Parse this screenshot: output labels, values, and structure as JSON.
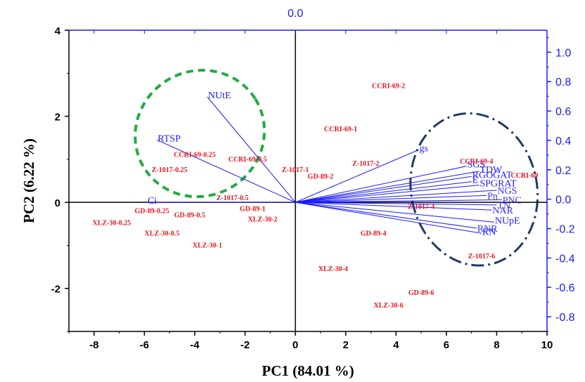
{
  "chart_data": {
    "type": "scatter",
    "subtype": "pca-biplot",
    "xlabel": "PC1 (84.01 %)",
    "ylabel": "PC2 (6.22 %)",
    "top_axis_label": "0.0",
    "xlim": [
      -9,
      10
    ],
    "ylim": [
      -3,
      4
    ],
    "loading_ylim": [
      -0.9,
      1.15
    ],
    "xticks": [
      "-8",
      "-6",
      "-4",
      "-2",
      "0",
      "2",
      "4",
      "6",
      "8",
      "10"
    ],
    "yticks_left": [
      "-2",
      "0",
      "2",
      "4"
    ],
    "yticks_right": [
      "-0.8",
      "-0.6",
      "-0.4",
      "-0.2",
      "0.0",
      "0.2",
      "0.4",
      "0.6",
      "0.8",
      "1.0"
    ],
    "scores": [
      {
        "label": "CCRI-69-2",
        "x": 3.7,
        "y": 2.7
      },
      {
        "label": "CCRI-69-1",
        "x": 1.8,
        "y": 1.7
      },
      {
        "label": "CCRI-69-0.25",
        "x": -4.0,
        "y": 1.1
      },
      {
        "label": "CCRI-69-0.5",
        "x": -1.9,
        "y": 1.0
      },
      {
        "label": "Z-1017-0.25",
        "x": -5.0,
        "y": 0.75
      },
      {
        "label": "Z-1017-1",
        "x": 0.0,
        "y": 0.75
      },
      {
        "label": "Z-1017-2",
        "x": 2.8,
        "y": 0.9
      },
      {
        "label": "GD-89-2",
        "x": 1.0,
        "y": 0.6
      },
      {
        "label": "CCRI-69-4",
        "x": 7.2,
        "y": 0.95
      },
      {
        "label": "CCRI-69",
        "x": 9.1,
        "y": 0.62
      },
      {
        "label": "Z-1017-0.5",
        "x": -2.5,
        "y": 0.1
      },
      {
        "label": "GD-89-1",
        "x": -1.7,
        "y": -0.15
      },
      {
        "label": "GD-89-0.25",
        "x": -5.7,
        "y": -0.2
      },
      {
        "label": "GD-89-0.5",
        "x": -4.2,
        "y": -0.3
      },
      {
        "label": "XLZ-30-0.25",
        "x": -7.3,
        "y": -0.48
      },
      {
        "label": "XLZ-30-2",
        "x": -1.3,
        "y": -0.4
      },
      {
        "label": "XLZ-30-0.5",
        "x": -5.3,
        "y": -0.72
      },
      {
        "label": "XLZ-30-1",
        "x": -3.5,
        "y": -1.0
      },
      {
        "label": "Z-1017-4",
        "x": 5.0,
        "y": -0.1
      },
      {
        "label": "GD-89-4",
        "x": 3.1,
        "y": -0.72
      },
      {
        "label": "Z-1017-6",
        "x": 7.4,
        "y": -1.25
      },
      {
        "label": "XLZ-30-4",
        "x": 1.5,
        "y": -1.55
      },
      {
        "label": "GD-89-6",
        "x": 5.0,
        "y": -2.1
      },
      {
        "label": "XLZ-30-6",
        "x": 3.7,
        "y": -2.4
      }
    ],
    "loadings": [
      {
        "label": "NUtE",
        "x": -3.5,
        "y": 2.45
      },
      {
        "label": "RTSP",
        "x": -5.5,
        "y": 1.45
      },
      {
        "label": "Ci",
        "x": -5.9,
        "y": 0.0
      },
      {
        "label": "gs",
        "x": 4.9,
        "y": 1.22
      },
      {
        "label": "SGS",
        "x": 6.8,
        "y": 0.84
      },
      {
        "label": "TDW",
        "x": 7.3,
        "y": 0.72
      },
      {
        "label": "RGOGAT",
        "x": 7.0,
        "y": 0.6
      },
      {
        "label": "E",
        "x": 7.0,
        "y": 0.48
      },
      {
        "label": "SPGRAT",
        "x": 7.3,
        "y": 0.4
      },
      {
        "label": "NGS",
        "x": 8.0,
        "y": 0.28
      },
      {
        "label": "Pn",
        "x": 7.6,
        "y": 0.16
      },
      {
        "label": "PNC",
        "x": 8.2,
        "y": 0.06
      },
      {
        "label": "TN",
        "x": 8.0,
        "y": -0.06
      },
      {
        "label": "NAR",
        "x": 7.8,
        "y": -0.18
      },
      {
        "label": "NUpE",
        "x": 7.9,
        "y": -0.46
      },
      {
        "label": "RNR",
        "x": 7.2,
        "y": -0.6
      },
      {
        "label": "RN",
        "x": 7.4,
        "y": -0.72
      }
    ],
    "loading_arrows_visible_labels": [
      "NUtE",
      "RTSP",
      "Ci",
      "gs",
      "SGS",
      "TDW",
      "RGOGAT",
      "E",
      "SPGRAT",
      "NUpE",
      "RN"
    ],
    "ellipses": [
      {
        "group": "left",
        "color": "#22aa44",
        "style": "dashed",
        "cx": -3.8,
        "cy": 1.6,
        "rx": 2.6,
        "ry": 1.45,
        "angle_deg": -32
      },
      {
        "group": "right",
        "color": "#1f3a66",
        "style": "dash-dot",
        "cx": 7.1,
        "cy": 0.3,
        "rx": 2.5,
        "ry": 1.78,
        "angle_deg": -12
      }
    ],
    "colors": {
      "scores": "#e8141e",
      "loadings": "#1a1aff",
      "axes": "#000000",
      "right_axis": "#1a1aff"
    }
  }
}
